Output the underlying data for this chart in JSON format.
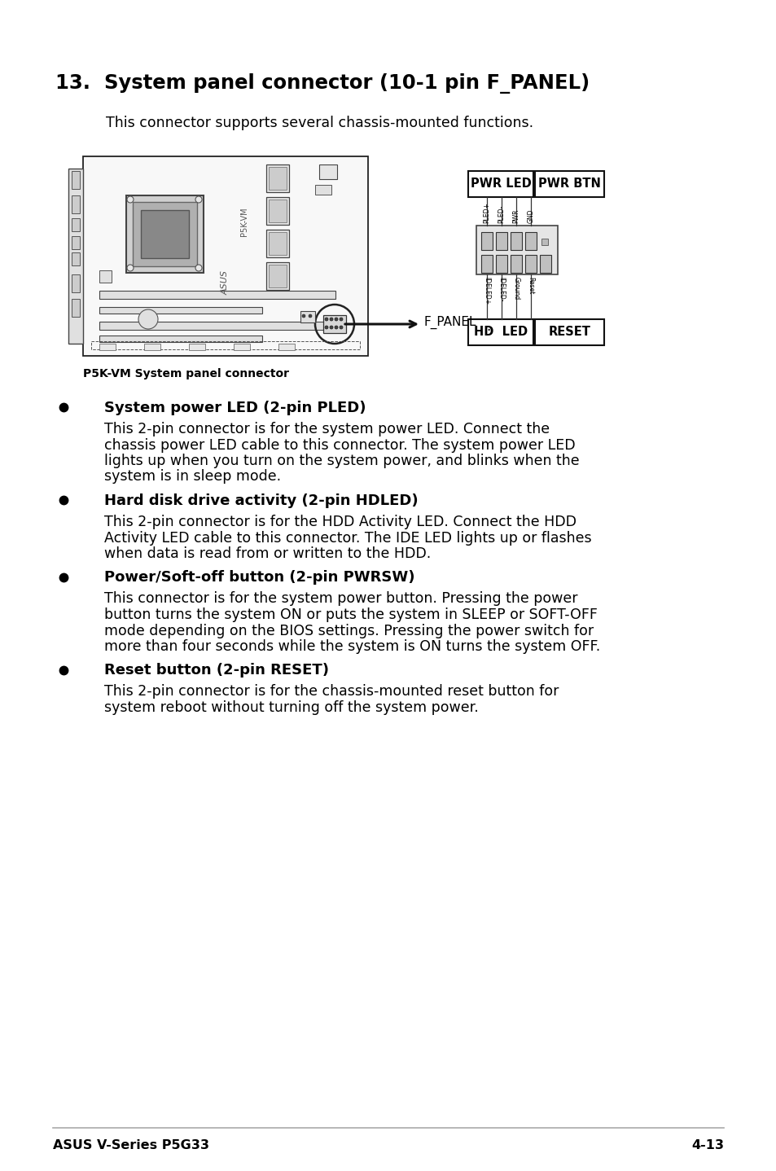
{
  "title": "13.  System panel connector (10-1 pin F_PANEL)",
  "subtitle": "This connector supports several chassis-mounted functions.",
  "figure_caption": "P5K-VM System panel connector",
  "fpanel_label": "F_PANEL",
  "pwr_led_label": "PWR LED",
  "pwr_btn_label": "PWR BTN",
  "hd_led_label": "HD  LED",
  "reset_label": "RESET",
  "top_pin_labels": [
    "PLED+",
    "PLED-",
    "PWR",
    "GND"
  ],
  "bot_pin_labels": [
    "IDELED+",
    "IDELED-",
    "Ground",
    "Reset"
  ],
  "bullet_items": [
    {
      "header": "System power LED (2-pin PLED)",
      "text": "This 2-pin connector is for the system power LED. Connect the\nchassis power LED cable to this connector. The system power LED\nlights up when you turn on the system power, and blinks when the\nsystem is in sleep mode."
    },
    {
      "header": "Hard disk drive activity (2-pin HDLED)",
      "text": "This 2-pin connector is for the HDD Activity LED. Connect the HDD\nActivity LED cable to this connector. The IDE LED lights up or flashes\nwhen data is read from or written to the HDD."
    },
    {
      "header": "Power/Soft-off button (2-pin PWRSW)",
      "text": "This connector is for the system power button. Pressing the power\nbutton turns the system ON or puts the system in SLEEP or SOFT-OFF\nmode depending on the BIOS settings. Pressing the power switch for\nmore than four seconds while the system is ON turns the system OFF."
    },
    {
      "header": "Reset button (2-pin RESET)",
      "text": "This 2-pin connector is for the chassis-mounted reset button for\nsystem reboot without turning off the system power."
    }
  ],
  "footer_left": "ASUS V-Series P5G33",
  "footer_right": "4-13",
  "bg_color": "#ffffff",
  "text_color": "#000000"
}
